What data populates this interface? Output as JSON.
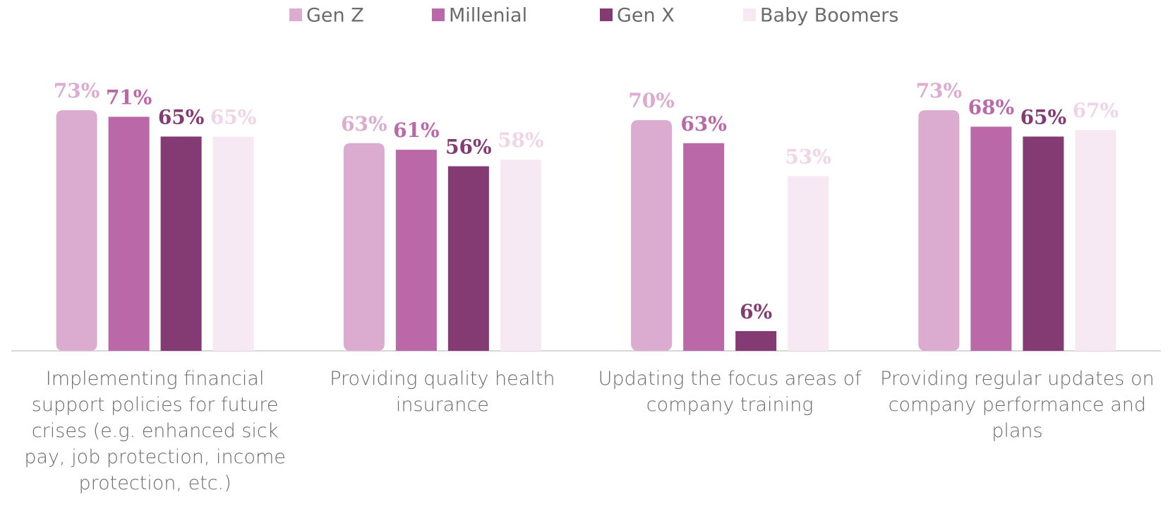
{
  "chart_data": {
    "type": "bar",
    "categories": [
      "Implementing financial support policies for future crises (e.g. enhanced sick pay, job protection, income protection, etc.)",
      "Providing quality health insurance",
      "Updating the focus areas of company training",
      "Providing regular updates on company performance and plans"
    ],
    "series": [
      {
        "name": "Gen Z",
        "color": "#dbaccf",
        "values": [
          73,
          63,
          70,
          73
        ],
        "value_labels": [
          "73%",
          "63%",
          "70%",
          "73%"
        ]
      },
      {
        "name": "Millenial",
        "color": "#bb68a8",
        "values": [
          71,
          61,
          63,
          68
        ],
        "value_labels": [
          "71%",
          "61%",
          "63%",
          "68%"
        ]
      },
      {
        "name": "Gen X",
        "color": "#843b74",
        "values": [
          65,
          56,
          6,
          65
        ],
        "value_labels": [
          "65%",
          "56%",
          "6%",
          "65%"
        ]
      },
      {
        "name": "Baby Boomers",
        "color": "#f6e9f3",
        "values": [
          65,
          58,
          53,
          67
        ],
        "value_labels": [
          "65%",
          "58%",
          "53%",
          "67%"
        ]
      }
    ],
    "ylim": [
      0,
      100
    ],
    "legend": "top"
  }
}
